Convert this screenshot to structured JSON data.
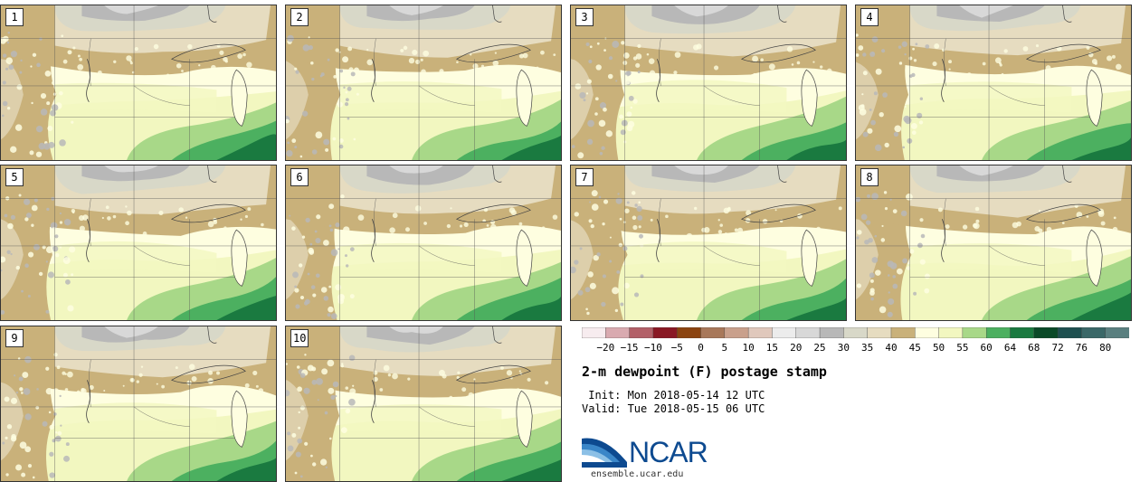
{
  "panels": [
    {
      "label": "1"
    },
    {
      "label": "2"
    },
    {
      "label": "3"
    },
    {
      "label": "4"
    },
    {
      "label": "5"
    },
    {
      "label": "6"
    },
    {
      "label": "7"
    },
    {
      "label": "8"
    },
    {
      "label": "9"
    },
    {
      "label": "10"
    }
  ],
  "colorbar": {
    "colors": [
      "#f7ecef",
      "#d9aab0",
      "#b36068",
      "#8a1824",
      "#8c4410",
      "#a8785a",
      "#c9a08c",
      "#e0c8bc",
      "#ececec",
      "#d8d8d8",
      "#b8b8b8",
      "#d8d8c8",
      "#e6dcc0",
      "#c9b17a",
      "#fefee0",
      "#f2f7c0",
      "#a8d888",
      "#4cb060",
      "#1a7a40",
      "#0a4a28",
      "#1e5050",
      "#3a6868",
      "#5a8080"
    ],
    "labels": [
      "−20",
      "−15",
      "−10",
      "−5",
      "0",
      "5",
      "10",
      "15",
      "20",
      "25",
      "30",
      "35",
      "40",
      "45",
      "50",
      "55",
      "60",
      "64",
      "68",
      "72",
      "76",
      "80"
    ]
  },
  "title": "2-m dewpoint (F) postage stamp",
  "init": " Init: Mon 2018-05-14 12 UTC",
  "valid": "Valid: Tue 2018-05-15 06 UTC",
  "logo": {
    "text": "NCAR",
    "url": "ensemble.ucar.edu"
  }
}
